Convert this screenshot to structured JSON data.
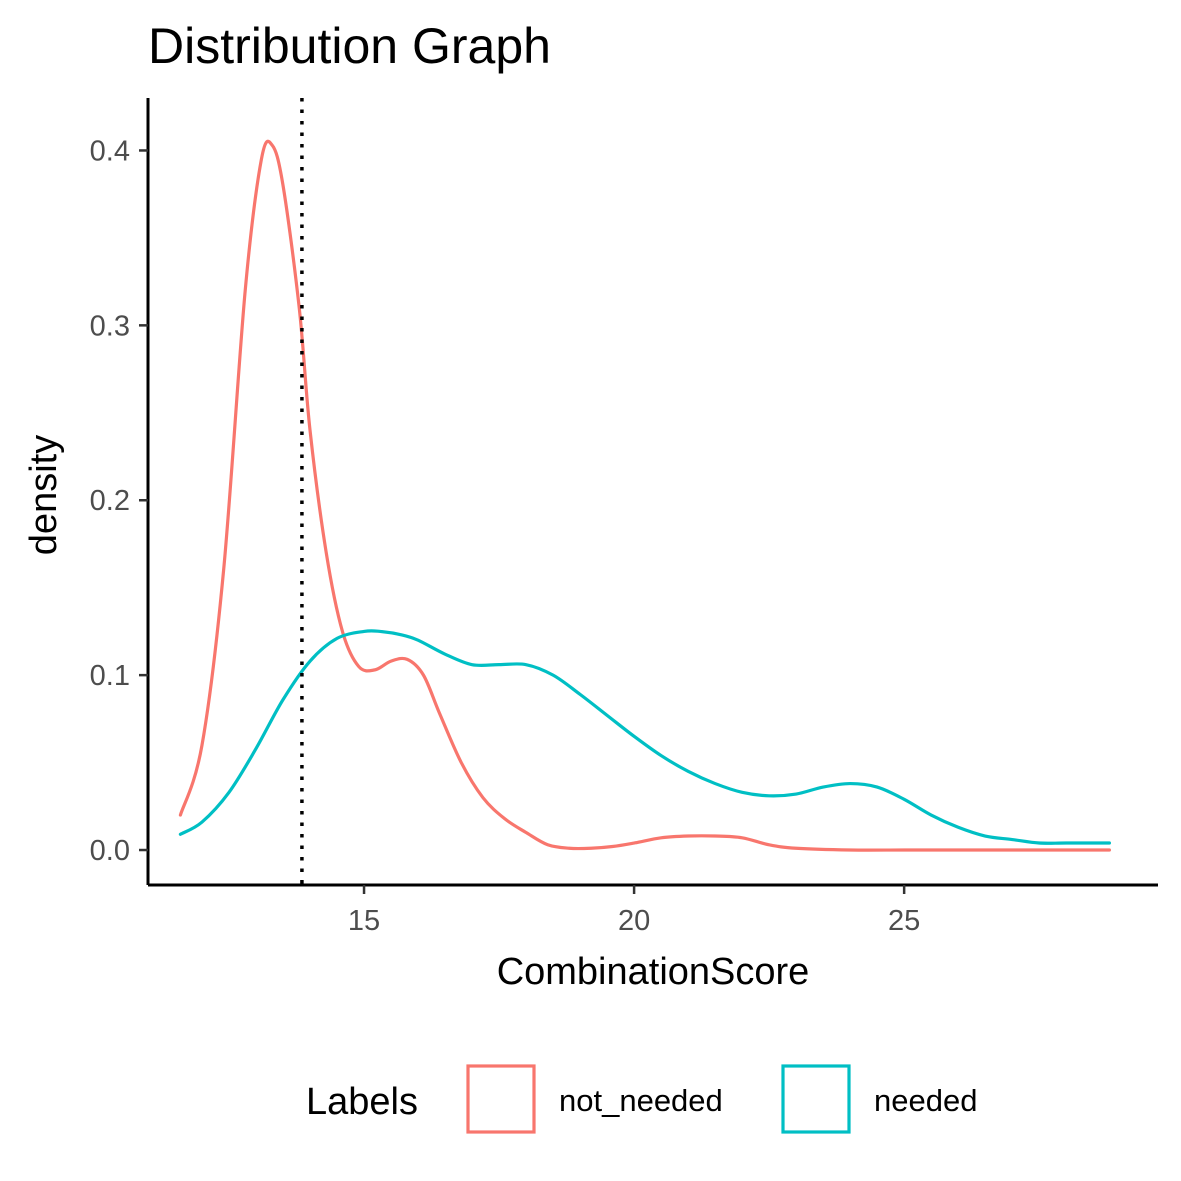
{
  "chart_data": {
    "type": "line",
    "title": "Distribution Graph",
    "xlabel": "CombinationScore",
    "ylabel": "density",
    "xlim": [
      11.0,
      29.7
    ],
    "ylim": [
      -0.02,
      0.43
    ],
    "x_ticks": [
      15,
      20,
      25
    ],
    "y_ticks": [
      0.0,
      0.1,
      0.2,
      0.3,
      0.4
    ],
    "x_tick_labels": [
      "15",
      "20",
      "25"
    ],
    "y_tick_labels": [
      "0.0",
      "0.1",
      "0.2",
      "0.3",
      "0.4"
    ],
    "grid": false,
    "legend_position": "bottom",
    "legend_title": "Labels",
    "vline": {
      "x": 13.85,
      "style": "dotted",
      "color": "#000000"
    },
    "series": [
      {
        "name": "not_needed",
        "color": "#F8766D",
        "x": [
          11.6,
          12.0,
          12.4,
          12.8,
          13.1,
          13.3,
          13.5,
          13.8,
          14.0,
          14.3,
          14.6,
          14.9,
          15.2,
          15.5,
          15.8,
          16.1,
          16.4,
          16.8,
          17.2,
          17.6,
          18.0,
          18.4,
          18.8,
          19.2,
          19.6,
          20.0,
          20.5,
          21.0,
          21.5,
          22.0,
          22.5,
          23.0,
          24.0,
          25.0,
          26.0,
          27.0,
          28.0,
          28.8
        ],
        "y": [
          0.02,
          0.06,
          0.16,
          0.32,
          0.395,
          0.403,
          0.38,
          0.31,
          0.24,
          0.17,
          0.125,
          0.105,
          0.103,
          0.108,
          0.109,
          0.1,
          0.078,
          0.05,
          0.03,
          0.018,
          0.01,
          0.003,
          0.001,
          0.001,
          0.002,
          0.004,
          0.007,
          0.008,
          0.008,
          0.007,
          0.003,
          0.001,
          0.0,
          0.0,
          0.0,
          0.0,
          0.0,
          0.0
        ]
      },
      {
        "name": "needed",
        "color": "#00BFC4",
        "x": [
          11.6,
          12.0,
          12.5,
          13.0,
          13.5,
          14.0,
          14.5,
          15.0,
          15.3,
          15.7,
          16.0,
          16.5,
          17.0,
          17.5,
          18.0,
          18.5,
          19.0,
          19.5,
          20.0,
          20.5,
          21.0,
          21.5,
          22.0,
          22.5,
          23.0,
          23.5,
          24.0,
          24.5,
          25.0,
          25.5,
          26.0,
          26.5,
          27.0,
          27.5,
          28.0,
          28.8
        ],
        "y": [
          0.009,
          0.016,
          0.033,
          0.058,
          0.086,
          0.108,
          0.121,
          0.125,
          0.125,
          0.123,
          0.12,
          0.112,
          0.106,
          0.106,
          0.106,
          0.1,
          0.089,
          0.077,
          0.065,
          0.054,
          0.045,
          0.038,
          0.033,
          0.031,
          0.032,
          0.036,
          0.038,
          0.036,
          0.029,
          0.02,
          0.013,
          0.008,
          0.006,
          0.004,
          0.004,
          0.004
        ]
      }
    ]
  }
}
